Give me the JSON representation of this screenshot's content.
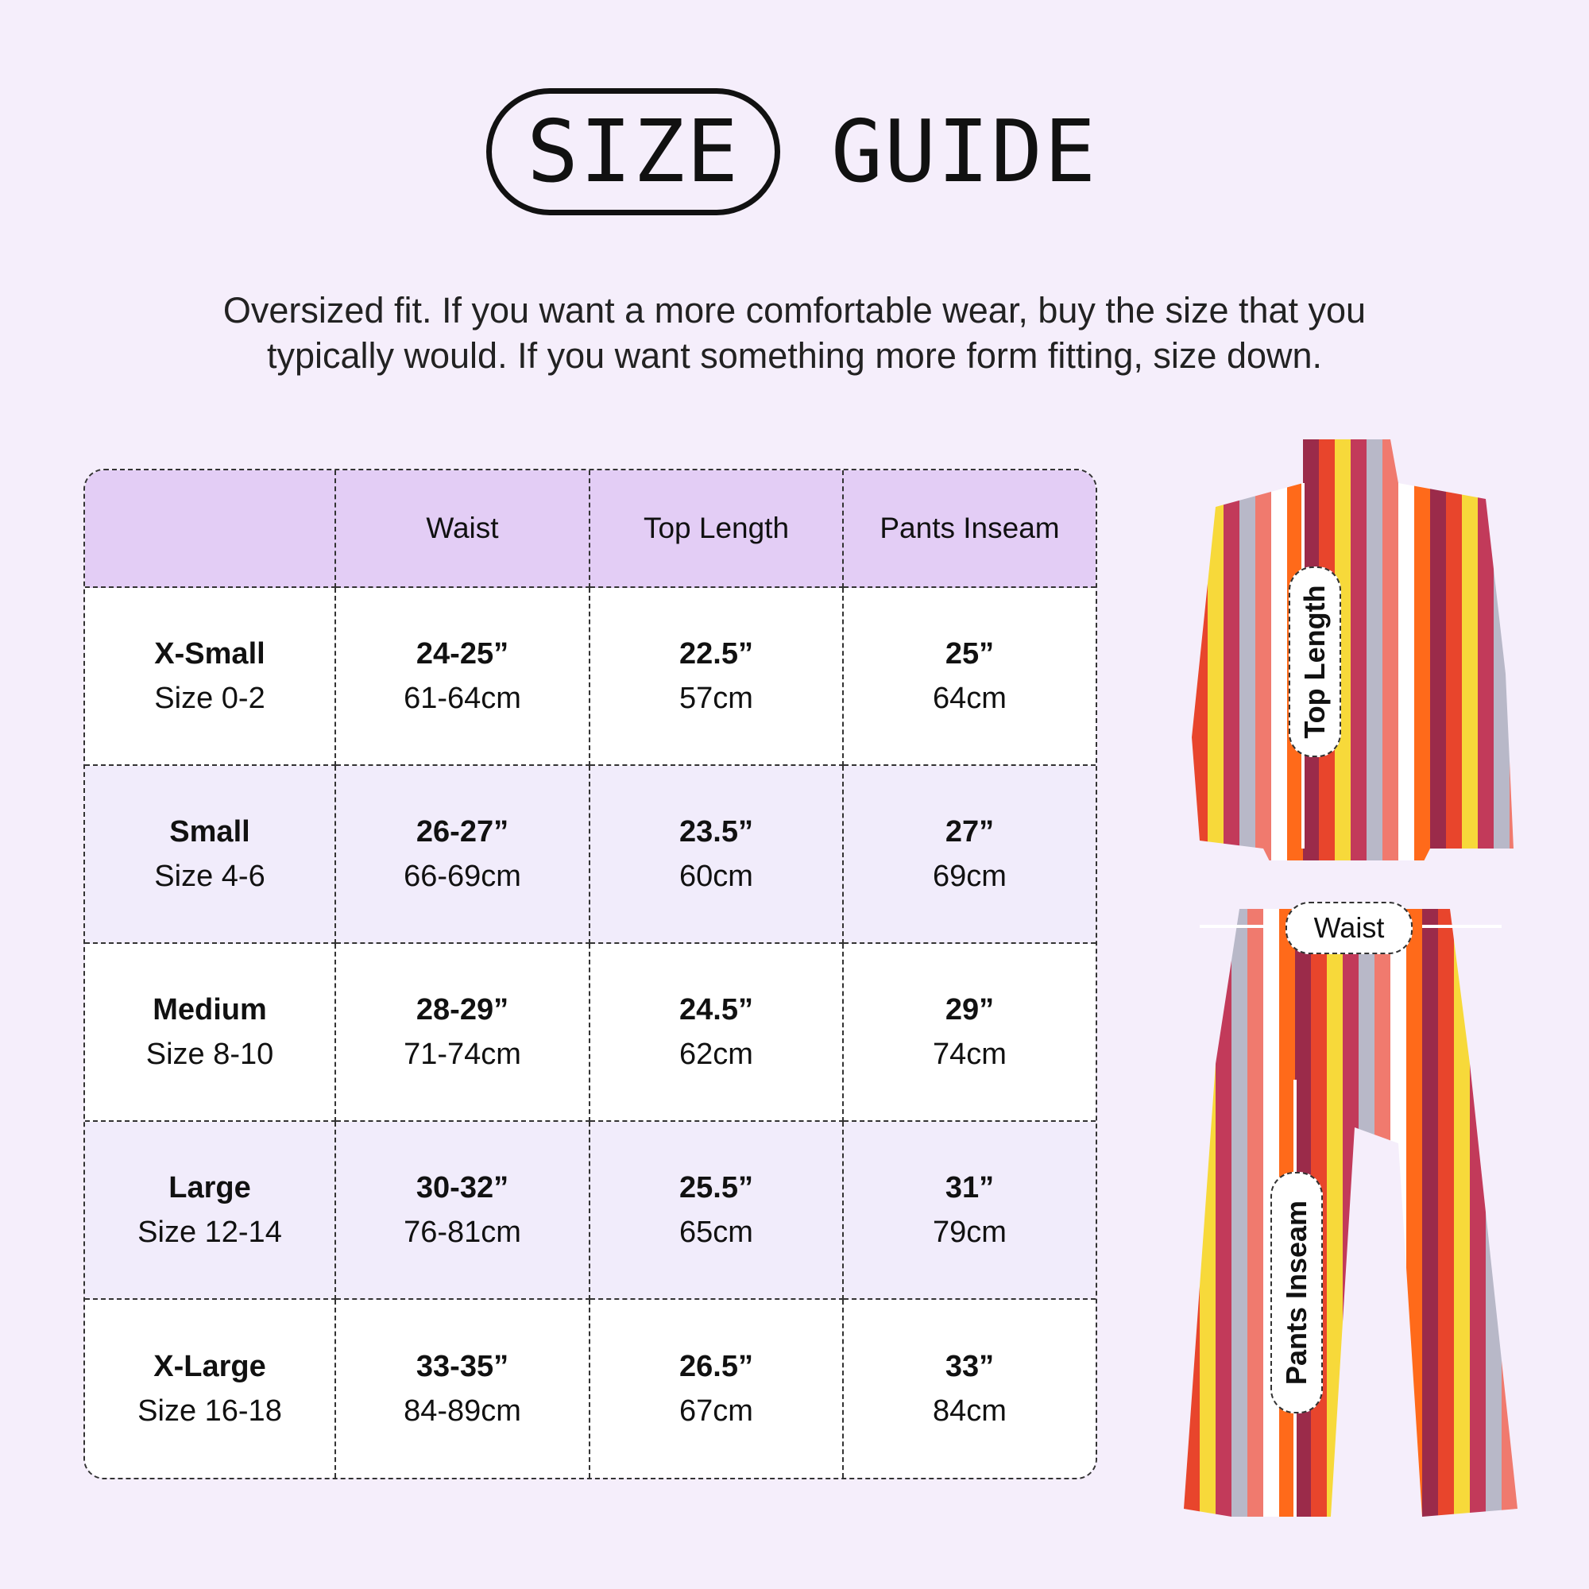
{
  "title": {
    "pill": "SIZE",
    "word": "GUIDE"
  },
  "subtitle": [
    "Oversized fit. If you want a more comfortable wear, buy the size that you",
    "typically would. If you want something more form fitting, size down."
  ],
  "table": {
    "headers": [
      "",
      "Waist",
      "Top Length",
      "Pants Inseam"
    ],
    "rows": [
      {
        "size": "X-Small",
        "num": "Size 0-2",
        "waist_in": "24-25”",
        "waist_cm": "61-64cm",
        "top_in": "22.5”",
        "top_cm": "57cm",
        "inseam_in": "25”",
        "inseam_cm": "64cm"
      },
      {
        "size": "Small",
        "num": "Size 4-6",
        "waist_in": "26-27”",
        "waist_cm": "66-69cm",
        "top_in": "23.5”",
        "top_cm": "60cm",
        "inseam_in": "27”",
        "inseam_cm": "69cm"
      },
      {
        "size": "Medium",
        "num": "Size 8-10",
        "waist_in": "28-29”",
        "waist_cm": "71-74cm",
        "top_in": "24.5”",
        "top_cm": "62cm",
        "inseam_in": "29”",
        "inseam_cm": "74cm"
      },
      {
        "size": "Large",
        "num": "Size 12-14",
        "waist_in": "30-32”",
        "waist_cm": "76-81cm",
        "top_in": "25.5”",
        "top_cm": "65cm",
        "inseam_in": "31”",
        "inseam_cm": "79cm"
      },
      {
        "size": "X-Large",
        "num": "Size 16-18",
        "waist_in": "33-35”",
        "waist_cm": "84-89cm",
        "top_in": "26.5”",
        "top_cm": "67cm",
        "inseam_in": "33”",
        "inseam_cm": "84cm"
      }
    ]
  },
  "image_labels": {
    "top_length": "Top Length",
    "waist": "Waist",
    "pants_inseam": "Pants Inseam"
  },
  "colors": {
    "background": "#f5eefb",
    "header": "#e3cdf5",
    "alt_row": "#f1ecfb",
    "stripes": [
      "#e8452c",
      "#f7d93a",
      "#c23a5a",
      "#b8b8c8",
      "#f07a6e",
      "#ffffff",
      "#ff6a1a",
      "#9b2b4a"
    ]
  }
}
